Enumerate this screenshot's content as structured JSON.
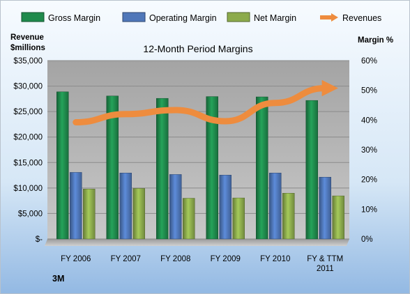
{
  "chart_data": {
    "type": "bar",
    "title": "12-Month Period Margins",
    "y_left_title": [
      "Revenue",
      "$millions"
    ],
    "y_right_title": "Margin %",
    "categories": [
      [
        "FY 2006"
      ],
      [
        "FY 2007"
      ],
      [
        "FY 2008"
      ],
      [
        "FY 2009"
      ],
      [
        "FY 2010"
      ],
      [
        "FY & TTM",
        "2011"
      ]
    ],
    "y_left_range": [
      0,
      35000
    ],
    "y_left_ticks": [
      "$-",
      "$5,000",
      "$10,000",
      "$15,000",
      "$20,000",
      "$25,000",
      "$30,000",
      "$35,000"
    ],
    "y_right_range": [
      0,
      0.6
    ],
    "y_right_ticks": [
      "0%",
      "10%",
      "20%",
      "30%",
      "40%",
      "50%",
      "60%"
    ],
    "grid": true,
    "legend_position": "top",
    "series": [
      {
        "name": "Gross Margin",
        "type": "bar",
        "axis": "right",
        "color": "#1f8a4c",
        "values": [
          0.495,
          0.481,
          0.473,
          0.479,
          0.478,
          0.466
        ]
      },
      {
        "name": "Operating Margin",
        "type": "bar",
        "axis": "right",
        "color": "#4f77b9",
        "values": [
          0.224,
          0.222,
          0.217,
          0.215,
          0.222,
          0.208
        ]
      },
      {
        "name": "Net Margin",
        "type": "bar",
        "axis": "right",
        "color": "#8cab4c",
        "values": [
          0.168,
          0.17,
          0.137,
          0.138,
          0.154,
          0.145
        ]
      },
      {
        "name": "Revenues",
        "type": "line",
        "axis": "left",
        "color": "#ee8c3e",
        "values": [
          22900,
          24500,
          25300,
          23100,
          26700,
          29600
        ]
      }
    ]
  },
  "source_label": "3M"
}
